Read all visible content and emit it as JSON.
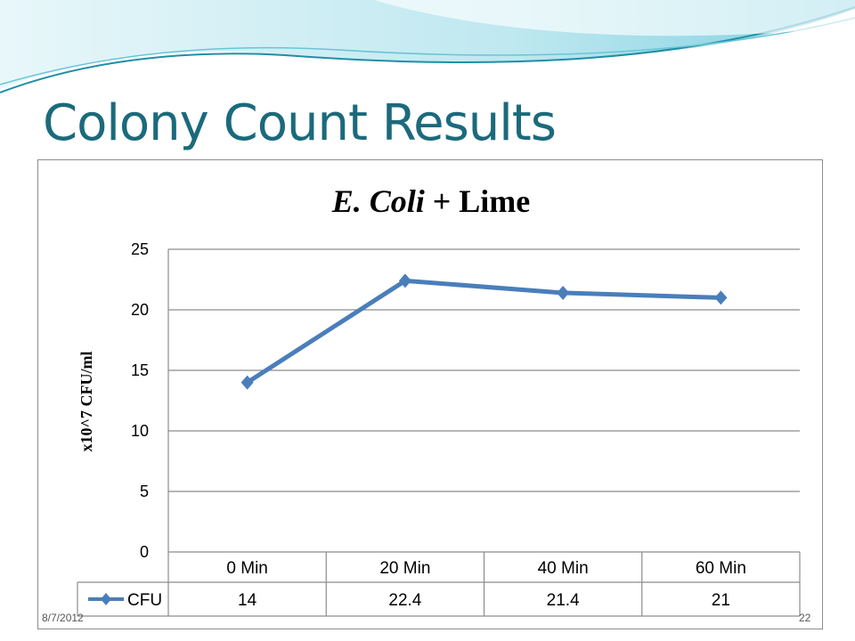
{
  "slide": {
    "title": "Colony Count Results",
    "date": "8/7/2012",
    "page_number": "22"
  },
  "colors": {
    "title_color": "#1b6a7c",
    "series_color": "#4a7ebb",
    "gridline_color": "#8c8c8c",
    "wave_light": "#d6f0f5",
    "wave_accent": "#1f8fa6"
  },
  "chart_data": {
    "type": "line",
    "title_italic": "E. Coli",
    "title_rest": " + Lime",
    "xlabel": "",
    "ylabel": "x10^7 CFU/ml",
    "ylim": [
      0,
      25
    ],
    "yticks": [
      0,
      5,
      10,
      15,
      20,
      25
    ],
    "grid": true,
    "legend": "data-table",
    "categories": [
      "0 Min",
      "20 Min",
      "40 Min",
      "60 Min"
    ],
    "series": [
      {
        "name": "CFU",
        "values": [
          14,
          22.4,
          21.4,
          21
        ],
        "labels": [
          "14",
          "22.4",
          "21.4",
          "21"
        ],
        "marker": "diamond"
      }
    ]
  }
}
